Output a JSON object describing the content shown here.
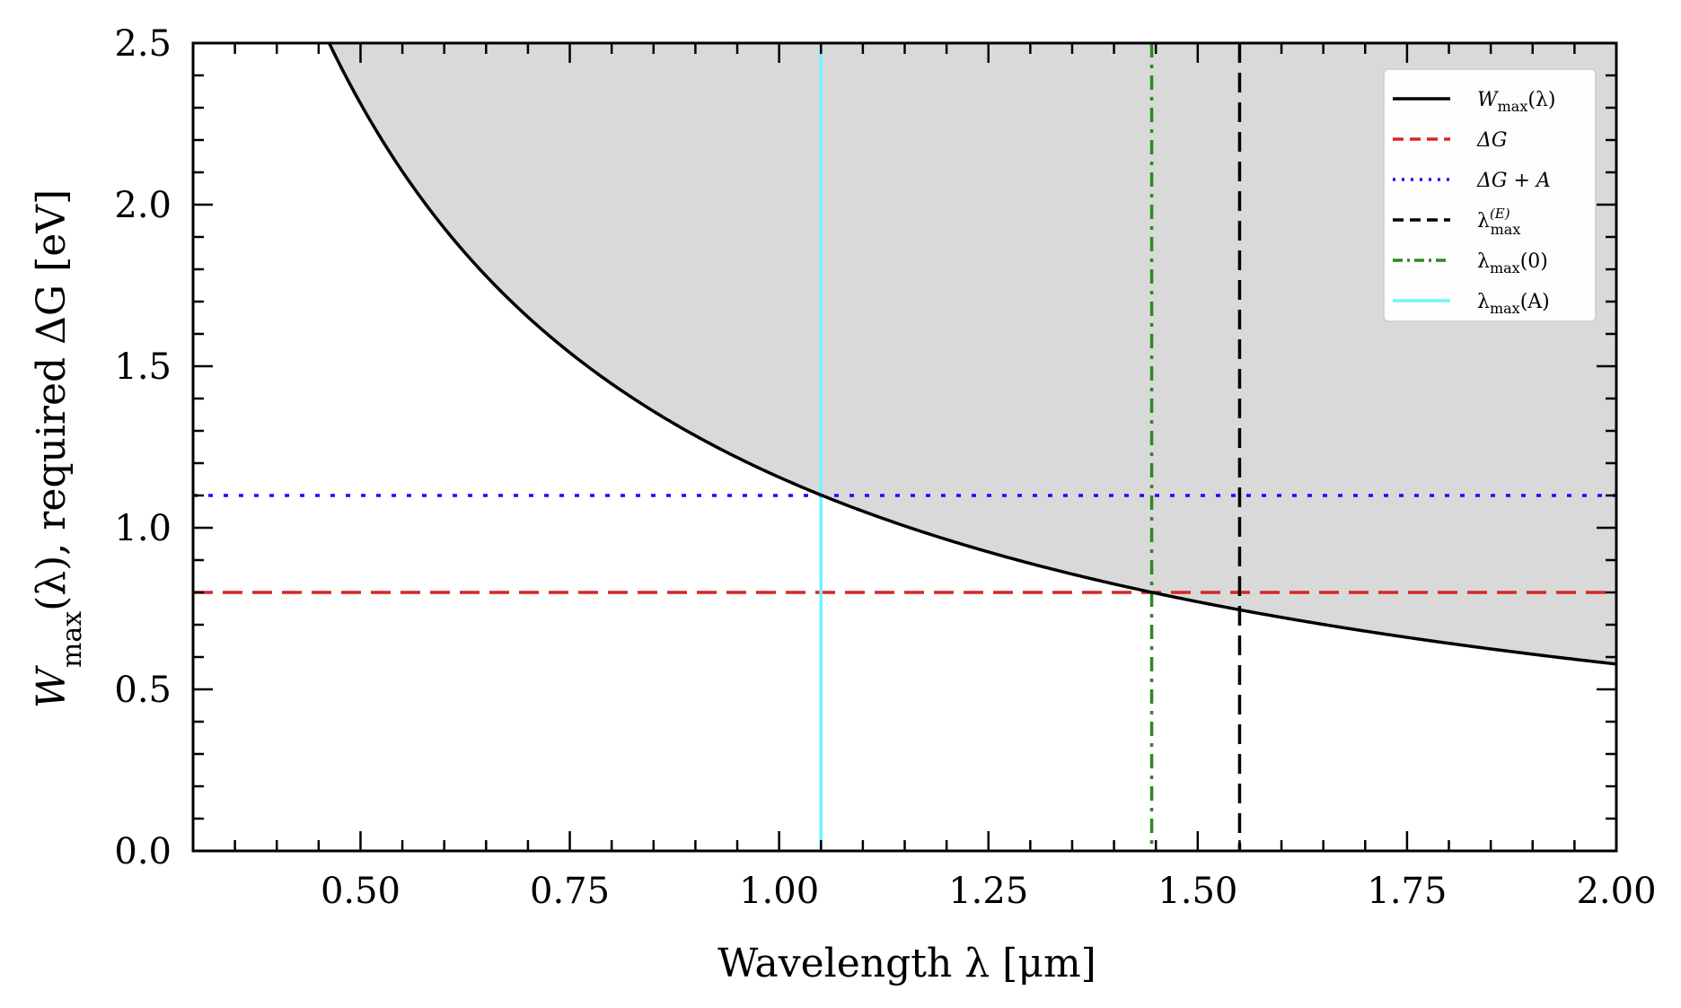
{
  "chart_data": {
    "type": "line",
    "xlabel": "Wavelength λ [μm]",
    "ylabel_parts": {
      "W": "W",
      "max": "max",
      "rest": "(λ), required ΔG [eV]"
    },
    "xlim": [
      0.3,
      2.0
    ],
    "ylim": [
      0.0,
      2.5
    ],
    "x_ticks": [
      0.5,
      0.75,
      1.0,
      1.25,
      1.5,
      1.75,
      2.0
    ],
    "x_tick_labels": [
      "0.50",
      "0.75",
      "1.00",
      "1.25",
      "1.50",
      "1.75",
      "2.00"
    ],
    "y_ticks": [
      0.0,
      0.5,
      1.0,
      1.5,
      2.0,
      2.5
    ],
    "y_tick_labels": [
      "0.0",
      "0.5",
      "1.0",
      "1.5",
      "2.0",
      "2.5"
    ],
    "curve": {
      "name": "W_max(λ)",
      "formula": "W = 1.1565 / λ",
      "coefficient": 1.1565,
      "color": "#000000",
      "fill_above_color": "#d9d9d9"
    },
    "horizontal_lines": [
      {
        "name": "ΔG",
        "y": 0.8,
        "color": "#d62728",
        "style": "dashed"
      },
      {
        "name": "ΔG + A",
        "y": 1.1,
        "color": "#2b00ff",
        "style": "dotted"
      }
    ],
    "vertical_lines": [
      {
        "name": "λmax(E)",
        "x": 1.55,
        "color": "#000000",
        "style": "dashed"
      },
      {
        "name": "λmax(0)",
        "x": 1.445,
        "color": "#2a8a1f",
        "style": "dashdot"
      },
      {
        "name": "λmax(A)",
        "x": 1.05,
        "color": "#6ff5ff",
        "style": "solid"
      }
    ],
    "legend": {
      "placement": "top-right",
      "entries": [
        {
          "main": "W",
          "sub": "max",
          "tail": "(λ)",
          "sup": "",
          "color": "#000000",
          "style": "solid"
        },
        {
          "main": "ΔG",
          "sub": "",
          "tail": "",
          "sup": "",
          "color": "#d62728",
          "style": "dashed"
        },
        {
          "main": "ΔG + A",
          "sub": "",
          "tail": "",
          "sup": "",
          "color": "#2b00ff",
          "style": "dotted"
        },
        {
          "main": "λ",
          "sub": "max",
          "tail": "",
          "sup": "(E)",
          "color": "#000000",
          "style": "dashed"
        },
        {
          "main": "λ",
          "sub": "max",
          "tail": "(0)",
          "sup": "",
          "color": "#2a8a1f",
          "style": "dashdot"
        },
        {
          "main": "λ",
          "sub": "max",
          "tail": "(A)",
          "sup": "",
          "color": "#6ff5ff",
          "style": "solid"
        }
      ]
    }
  }
}
